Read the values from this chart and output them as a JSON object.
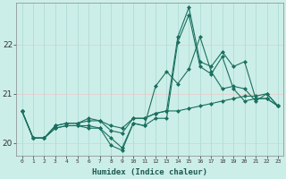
{
  "xlabel": "Humidex (Indice chaleur)",
  "x_values": [
    0,
    1,
    2,
    3,
    4,
    5,
    6,
    7,
    8,
    9,
    10,
    11,
    12,
    13,
    14,
    15,
    16,
    17,
    18,
    19,
    20,
    21,
    22,
    23
  ],
  "series": [
    [
      20.65,
      20.1,
      20.1,
      20.3,
      20.35,
      20.35,
      20.35,
      20.3,
      19.95,
      19.85,
      20.4,
      20.35,
      20.5,
      20.5,
      22.05,
      22.6,
      21.55,
      21.4,
      21.75,
      21.1,
      20.85,
      20.9,
      20.9,
      20.75
    ],
    [
      20.65,
      20.1,
      20.1,
      20.3,
      20.35,
      20.35,
      20.3,
      20.3,
      20.1,
      19.9,
      20.4,
      20.35,
      21.15,
      21.45,
      21.2,
      21.5,
      22.15,
      21.45,
      21.1,
      21.15,
      21.1,
      20.85,
      21.0,
      20.75
    ],
    [
      20.65,
      20.1,
      20.1,
      20.35,
      20.4,
      20.4,
      20.45,
      20.45,
      20.25,
      20.2,
      20.5,
      20.5,
      20.6,
      20.65,
      22.15,
      22.75,
      21.65,
      21.55,
      21.85,
      21.55,
      21.65,
      20.9,
      20.9,
      20.75
    ],
    [
      20.65,
      20.1,
      20.1,
      20.35,
      20.4,
      20.4,
      20.5,
      20.45,
      20.35,
      20.3,
      20.5,
      20.5,
      20.6,
      20.65,
      20.65,
      20.7,
      20.75,
      20.8,
      20.85,
      20.9,
      20.95,
      20.95,
      21.0,
      20.75
    ]
  ],
  "line_color": "#1a7060",
  "marker": "D",
  "marker_size": 2.0,
  "linewidth": 0.8,
  "ylim": [
    19.75,
    22.85
  ],
  "yticks": [
    20,
    21,
    22
  ],
  "xlim": [
    -0.5,
    23.5
  ],
  "bg_color": "#cceee8",
  "grid_color_major": "#aad8d2",
  "grid_color_minor": "#e8c8c8"
}
